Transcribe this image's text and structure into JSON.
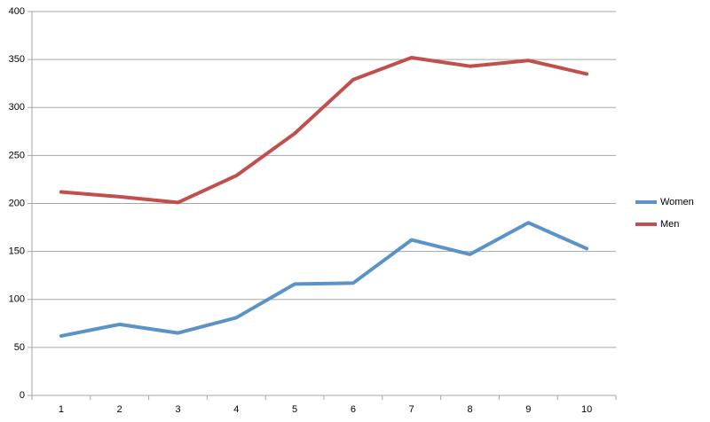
{
  "chart_data": {
    "type": "line",
    "categories": [
      "1",
      "2",
      "3",
      "4",
      "5",
      "6",
      "7",
      "8",
      "9",
      "10"
    ],
    "series": [
      {
        "name": "Women",
        "color": "#5b93c8",
        "values": [
          62,
          74,
          65,
          81,
          116,
          117,
          162,
          147,
          180,
          153
        ]
      },
      {
        "name": "Men",
        "color": "#c0504d",
        "values": [
          212,
          207,
          201,
          229,
          273,
          329,
          352,
          343,
          349,
          335
        ]
      }
    ],
    "ylim": [
      0,
      400
    ],
    "yticks": [
      0,
      50,
      100,
      150,
      200,
      250,
      300,
      350,
      400
    ],
    "grid": true,
    "legend": "right"
  }
}
